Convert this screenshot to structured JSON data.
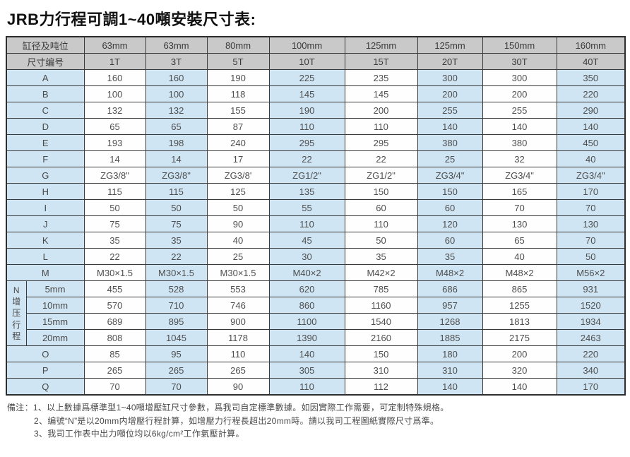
{
  "title": "JRB力行程可調1~40噸安裝尺寸表:",
  "table": {
    "corner_label_row1": "缸径及吨位",
    "corner_label_row2": "尺寸编号",
    "bore_sizes": [
      "63mm",
      "63mm",
      "80mm",
      "100mm",
      "125mm",
      "125mm",
      "150mm",
      "160mm"
    ],
    "tonnages": [
      "1T",
      "3T",
      "5T",
      "10T",
      "15T",
      "20T",
      "30T",
      "40T"
    ],
    "rows": [
      {
        "label": "A",
        "values": [
          "160",
          "160",
          "190",
          "225",
          "235",
          "300",
          "300",
          "350"
        ]
      },
      {
        "label": "B",
        "values": [
          "100",
          "100",
          "118",
          "145",
          "145",
          "200",
          "200",
          "220"
        ]
      },
      {
        "label": "C",
        "values": [
          "132",
          "132",
          "155",
          "190",
          "200",
          "255",
          "255",
          "290"
        ]
      },
      {
        "label": "D",
        "values": [
          "65",
          "65",
          "87",
          "110",
          "110",
          "140",
          "140",
          "140"
        ]
      },
      {
        "label": "E",
        "values": [
          "193",
          "198",
          "240",
          "295",
          "295",
          "380",
          "380",
          "450"
        ]
      },
      {
        "label": "F",
        "values": [
          "14",
          "14",
          "17",
          "22",
          "22",
          "25",
          "32",
          "40"
        ]
      },
      {
        "label": "G",
        "values": [
          "ZG3/8\"",
          "ZG3/8\"",
          "ZG3/8'",
          "ZG1/2\"",
          "ZG1/2\"",
          "ZG3/4\"",
          "ZG3/4\"",
          "ZG3/4\""
        ]
      },
      {
        "label": "H",
        "values": [
          "115",
          "115",
          "125",
          "135",
          "150",
          "150",
          "165",
          "170"
        ]
      },
      {
        "label": "I",
        "values": [
          "50",
          "50",
          "50",
          "55",
          "60",
          "60",
          "70",
          "70"
        ]
      },
      {
        "label": "J",
        "values": [
          "75",
          "75",
          "90",
          "110",
          "110",
          "120",
          "130",
          "130"
        ]
      },
      {
        "label": "K",
        "values": [
          "35",
          "35",
          "40",
          "45",
          "50",
          "60",
          "65",
          "70"
        ]
      },
      {
        "label": "L",
        "values": [
          "22",
          "22",
          "25",
          "30",
          "35",
          "35",
          "40",
          "50"
        ]
      },
      {
        "label": "M",
        "values": [
          "M30×1.5",
          "M30×1.5",
          "M30×1.5",
          "M40×2",
          "M42×2",
          "M48×2",
          "M48×2",
          "M56×2"
        ]
      }
    ],
    "n_section": {
      "vertical_label": "N增压行程",
      "rows": [
        {
          "label": "5mm",
          "values": [
            "455",
            "528",
            "553",
            "620",
            "785",
            "686",
            "865",
            "931"
          ]
        },
        {
          "label": "10mm",
          "values": [
            "570",
            "710",
            "746",
            "860",
            "1160",
            "957",
            "1255",
            "1520"
          ]
        },
        {
          "label": "15mm",
          "values": [
            "689",
            "895",
            "900",
            "1100",
            "1540",
            "1268",
            "1813",
            "1934"
          ]
        },
        {
          "label": "20mm",
          "values": [
            "808",
            "1045",
            "1178",
            "1390",
            "2160",
            "1885",
            "2175",
            "2463"
          ]
        }
      ]
    },
    "tail_rows": [
      {
        "label": "O",
        "values": [
          "85",
          "95",
          "110",
          "140",
          "150",
          "180",
          "200",
          "220"
        ]
      },
      {
        "label": "P",
        "values": [
          "265",
          "265",
          "265",
          "305",
          "310",
          "310",
          "320",
          "340"
        ]
      },
      {
        "label": "Q",
        "values": [
          "70",
          "70",
          "90",
          "110",
          "112",
          "140",
          "140",
          "170"
        ]
      }
    ]
  },
  "notes": {
    "lines": [
      "備注：1、以上數據爲標準型1~40噸增壓缸尺寸參數，爲我司自定標準數據。如因實際工作需要，可定制特殊規格。",
      "2、编號“N”是以20mm内增壓行程計算，如增壓力行程長超出20mm時。請以我司工程圖紙實際尺寸爲準。",
      "3、我司工作表中出力噸位均以6kg/cm²工作氣壓計算。"
    ]
  },
  "colors": {
    "header_bg": "#c9c9c9",
    "blue_bg": "#cfe5f4",
    "white_bg": "#fefefe",
    "border": "#3a3a3a"
  }
}
